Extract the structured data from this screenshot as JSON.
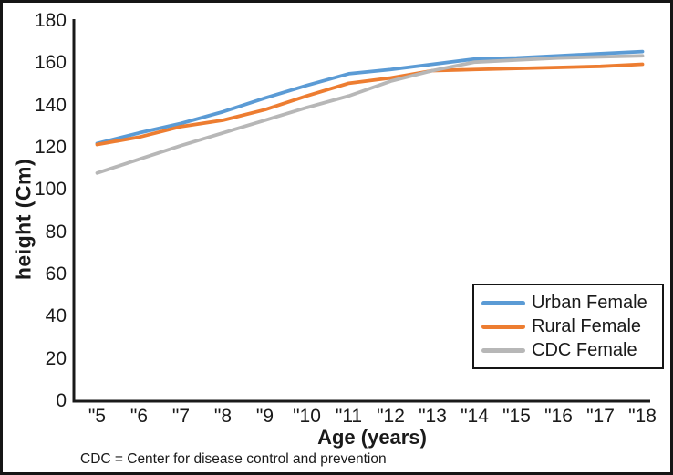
{
  "figure": {
    "footnote": "CDC = Center for disease control and prevention"
  },
  "chart_data": {
    "type": "line",
    "title": "",
    "xlabel": "Age (years)",
    "ylabel": "height (Cm)",
    "x_tick_labels": [
      "\"5",
      "\"6",
      "\"7",
      "\"8",
      "\"9",
      "\"10",
      "\"11",
      "\"12",
      "\"13",
      "\"14",
      "\"15",
      "\"16",
      "\"17",
      "\"18"
    ],
    "ages": [
      5,
      6,
      7,
      8,
      9,
      10,
      11,
      12,
      13,
      14,
      15,
      16,
      17,
      18
    ],
    "y_tick_labels": [
      "0",
      "20",
      "40",
      "60",
      "80",
      "100",
      "120",
      "140",
      "160",
      "180"
    ],
    "ylim": [
      0,
      180
    ],
    "ytick_step": 20,
    "grid": false,
    "legend_position": "inside-lower-right",
    "axis_color": "#1a1a1a",
    "series": [
      {
        "name": "Urban Female",
        "color": "#5B9BD5",
        "values": [
          122,
          127,
          131.5,
          137,
          143.5,
          149.5,
          155,
          157,
          159.5,
          162,
          162.5,
          163.5,
          164.5,
          165.5
        ]
      },
      {
        "name": "Rural Female",
        "color": "#ED7D31",
        "values": [
          121.5,
          125,
          130,
          133,
          138,
          144.5,
          150.5,
          153,
          156.5,
          157,
          157.5,
          158,
          158.5,
          159.5
        ]
      },
      {
        "name": "CDC Female",
        "color": "#B7B7B7",
        "values": [
          108,
          114.5,
          121,
          127,
          133,
          139,
          144.5,
          151.5,
          156.5,
          160.5,
          161.5,
          162.5,
          163,
          163.5
        ]
      }
    ]
  }
}
